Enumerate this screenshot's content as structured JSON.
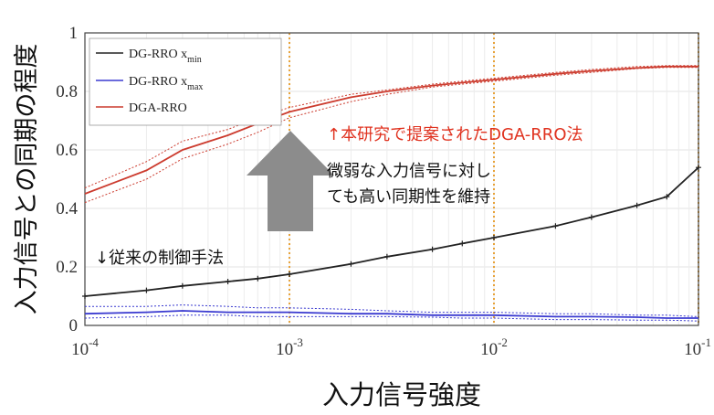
{
  "chart_data": {
    "type": "line",
    "xscale": "log",
    "xlim": [
      0.0001,
      0.1
    ],
    "ylim": [
      0,
      1
    ],
    "xlabel": "入力信号強度",
    "ylabel": "入力信号との同期の程度",
    "x_ticks": [
      {
        "value": 0.0001,
        "base": "10",
        "exp": "-4"
      },
      {
        "value": 0.001,
        "base": "10",
        "exp": "-3"
      },
      {
        "value": 0.01,
        "base": "10",
        "exp": "-2"
      },
      {
        "value": 0.1,
        "base": "10",
        "exp": "-1"
      }
    ],
    "y_ticks": [
      0,
      0.2,
      0.4,
      0.6,
      0.8,
      1
    ],
    "y_tick_labels": [
      "0",
      "0.2",
      "0.4",
      "0.6",
      "0.8",
      "1"
    ],
    "legend": {
      "placement": "top-left",
      "entries": [
        {
          "text": "DG-RRO x",
          "sub": "min",
          "color": "#222222"
        },
        {
          "text": "DG-RRO x",
          "sub": "max",
          "color": "#3a3ad0"
        },
        {
          "text": "DGA-RRO",
          "sub": "",
          "color": "#cc3b2e"
        }
      ]
    },
    "x": [
      0.0001,
      0.0002,
      0.0003,
      0.0005,
      0.0007,
      0.001,
      0.002,
      0.003,
      0.005,
      0.007,
      0.01,
      0.02,
      0.03,
      0.05,
      0.07,
      0.1
    ],
    "series": [
      {
        "name": "DG-RRO xmin",
        "color": "#222222",
        "values": [
          0.1,
          0.12,
          0.135,
          0.15,
          0.16,
          0.175,
          0.21,
          0.235,
          0.26,
          0.28,
          0.3,
          0.34,
          0.37,
          0.41,
          0.44,
          0.54
        ],
        "markers": true
      },
      {
        "name": "DG-RRO xmax",
        "color": "#3a3ad0",
        "values": [
          0.04,
          0.045,
          0.05,
          0.045,
          0.045,
          0.045,
          0.04,
          0.04,
          0.035,
          0.035,
          0.035,
          0.03,
          0.03,
          0.028,
          0.025,
          0.025
        ],
        "band_upper": [
          0.065,
          0.065,
          0.07,
          0.065,
          0.06,
          0.06,
          0.055,
          0.05,
          0.045,
          0.045,
          0.045,
          0.04,
          0.04,
          0.035,
          0.035,
          0.03
        ],
        "band_lower": [
          0.025,
          0.03,
          0.035,
          0.035,
          0.03,
          0.03,
          0.03,
          0.03,
          0.028,
          0.025,
          0.025,
          0.02,
          0.02,
          0.018,
          0.018,
          0.015
        ]
      },
      {
        "name": "DGA-RRO",
        "color": "#cc3b2e",
        "values": [
          0.45,
          0.53,
          0.6,
          0.65,
          0.69,
          0.73,
          0.78,
          0.8,
          0.82,
          0.83,
          0.84,
          0.86,
          0.87,
          0.88,
          0.885,
          0.885
        ],
        "band_upper": [
          0.47,
          0.56,
          0.63,
          0.67,
          0.71,
          0.745,
          0.79,
          0.805,
          0.825,
          0.835,
          0.845,
          0.865,
          0.875,
          0.885,
          0.888,
          0.888
        ],
        "band_lower": [
          0.42,
          0.5,
          0.57,
          0.62,
          0.66,
          0.71,
          0.765,
          0.79,
          0.815,
          0.825,
          0.835,
          0.855,
          0.865,
          0.878,
          0.882,
          0.882
        ]
      }
    ],
    "vlines": [
      0.001,
      0.01,
      0.1
    ],
    "vline_color": "#e8a33a",
    "grid": true,
    "annotations": [
      {
        "text": "↑本研究で提案されたDGA-RRO法",
        "color": "#e0321f"
      },
      {
        "text": "微弱な入力信号に対し",
        "color": "#111111"
      },
      {
        "text": "ても高い同期性を維持",
        "color": "#111111"
      },
      {
        "text": "↓従来の制御手法",
        "color": "#111111"
      }
    ],
    "arrow_color": "#8c8c8c"
  }
}
